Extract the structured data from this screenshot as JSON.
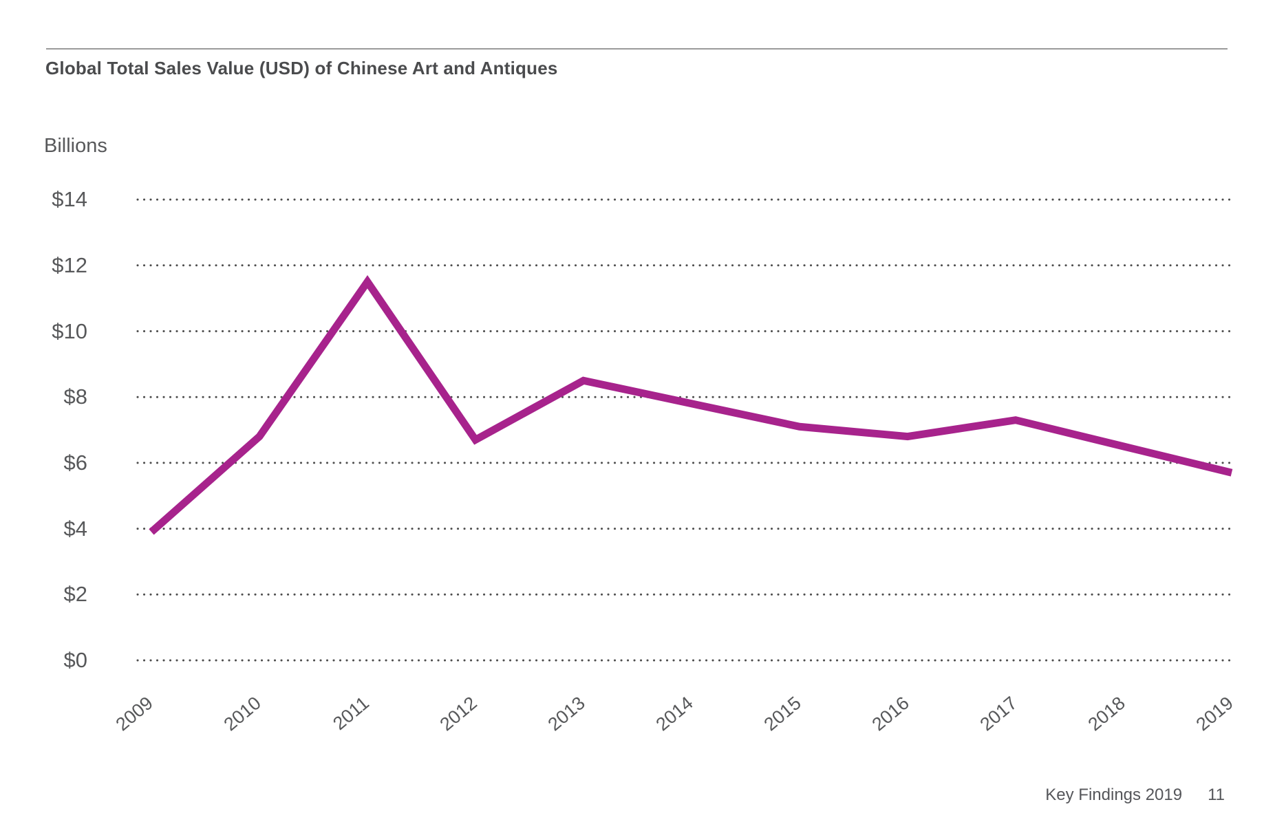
{
  "page": {
    "title": "Global Total Sales Value (USD) of Chinese Art and Antiques",
    "footer": {
      "label": "Key Findings 2019",
      "page_number": "11"
    }
  },
  "chart_data": {
    "type": "line",
    "title": "Global Total Sales Value (USD) of Chinese Art and Antiques",
    "unit_label": "Billions",
    "categories": [
      "2009",
      "2010",
      "2011",
      "2012",
      "2013",
      "2014",
      "2015",
      "2016",
      "2017",
      "2018",
      "2019"
    ],
    "series": [
      {
        "name": "Global total sales value of Chinese art and antiques (USD billions)",
        "values": [
          3.9,
          6.8,
          11.5,
          6.7,
          8.5,
          7.8,
          7.1,
          6.8,
          7.3,
          6.5,
          5.7
        ]
      }
    ],
    "xlabel": "",
    "ylabel": "Billions",
    "ylim": [
      0,
      14
    ],
    "y_tick_step": 2,
    "y_tick_labels": [
      "$0",
      "$2",
      "$4",
      "$6",
      "$8",
      "$10",
      "$12",
      "$14"
    ],
    "grid": "dotted-horizontal",
    "legend": "none",
    "line_color": "#a7238c",
    "text_color": "#57585a",
    "grid_color": "#4d4d4d"
  }
}
